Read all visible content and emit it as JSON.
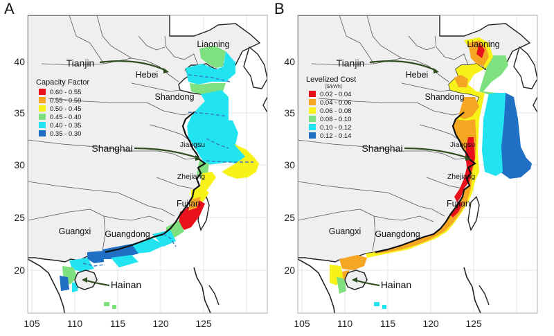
{
  "panels": [
    {
      "letter": "A",
      "legend_title": "Capacity Factor",
      "legend_subtitle": "",
      "legend_items": [
        {
          "label": "0.60 - 0.55",
          "color": "#e8101a"
        },
        {
          "label": "0.55 - 0.50",
          "color": "#f5a623"
        },
        {
          "label": "0.50 - 0.45",
          "color": "#f7f21a"
        },
        {
          "label": "0.45 - 0.40",
          "color": "#7fe07f"
        },
        {
          "label": "0.40 - 0.35",
          "color": "#22e3f0"
        },
        {
          "label": "0.35 - 0.30",
          "color": "#1f6fc4"
        }
      ]
    },
    {
      "letter": "B",
      "legend_title": "Levelized Cost",
      "legend_subtitle": "[$/kWh]",
      "legend_items": [
        {
          "label": "0.02 - 0.04",
          "color": "#e8101a"
        },
        {
          "label": "0.04 - 0.06",
          "color": "#f5a623"
        },
        {
          "label": "0.06 - 0.08",
          "color": "#f7f21a"
        },
        {
          "label": "0.08 - 0.10",
          "color": "#7fe07f"
        },
        {
          "label": "0.10 - 0.12",
          "color": "#22e3f0"
        },
        {
          "label": "0.12 - 0.14",
          "color": "#1f6fc4"
        }
      ]
    }
  ],
  "x_ticks": [
    "105",
    "110",
    "115",
    "120",
    "125"
  ],
  "y_ticks": [
    "40",
    "35",
    "30",
    "25",
    "20"
  ],
  "provinces": {
    "liaoning": "Liaoning",
    "hebei": "Hebei",
    "shandong": "Shandong",
    "jiangsu": "Jiangsu",
    "zhejiang": "Zhejiang",
    "fujian": "Fujian",
    "guangdong": "Guangdong",
    "guangxi": "Guangxi"
  },
  "cities": {
    "tianjin": "Tianjin",
    "shanghai": "Shanghai",
    "hainan": "Hainan"
  }
}
